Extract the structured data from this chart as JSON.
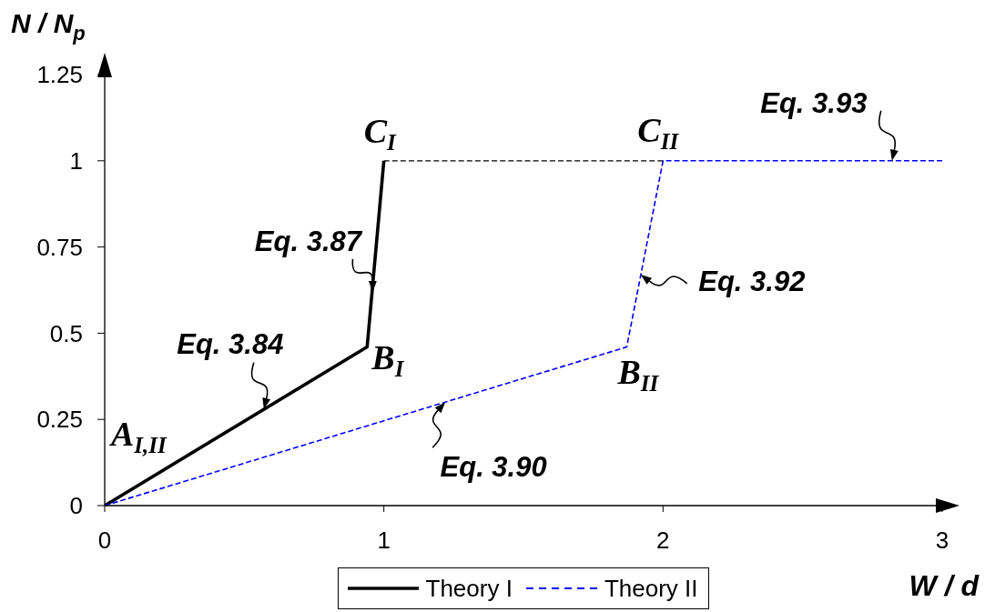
{
  "chart_data": {
    "type": "line",
    "xlabel": "W / d",
    "ylabel": "N / N$_{p}$",
    "series": [
      {
        "name": "Theory I",
        "color": "#000000",
        "x": [
          0,
          0.94,
          1
        ],
        "values": [
          0,
          0.46,
          1
        ],
        "line_style": "solid"
      },
      {
        "name": "Theory II",
        "color": "#0000ff",
        "x": [
          0,
          1.87,
          2,
          3
        ],
        "values": [
          0,
          0.46,
          1,
          1
        ],
        "line_style": "dashed"
      },
      {
        "color": "#000000",
        "x": [
          1,
          2
        ],
        "values": [
          1,
          1
        ],
        "line_style": "dashed"
      }
    ],
    "xlim": [
      0,
      3
    ],
    "xticks": [
      0,
      1,
      2,
      3
    ],
    "ylim": [
      0,
      1.25
    ],
    "yticks": [
      0,
      0.25,
      0.5,
      0.75,
      1,
      1.25
    ],
    "legend": "bottom",
    "annotations": [
      {
        "text": "A$_{I,II}$",
        "x": 0,
        "y": 0
      },
      {
        "text": "Eq. 3.84",
        "x": 0.57,
        "y": 0.28
      },
      {
        "text": "B$_{I}$",
        "x": 0.94,
        "y": 0.46
      },
      {
        "text": "Eq. 3.87",
        "x": 0.96,
        "y": 0.62
      },
      {
        "text": "C$_{I}$",
        "x": 1,
        "y": 1
      },
      {
        "text": "Eq. 3.90",
        "x": 1.22,
        "y": 0.3
      },
      {
        "text": "B$_{II}$",
        "x": 1.87,
        "y": 0.46
      },
      {
        "text": "Eq. 3.92",
        "x": 1.92,
        "y": 0.67
      },
      {
        "text": "C$_{II}$",
        "x": 2,
        "y": 1
      },
      {
        "text": "Eq. 3.93",
        "x": 2.82,
        "y": 1
      }
    ]
  }
}
